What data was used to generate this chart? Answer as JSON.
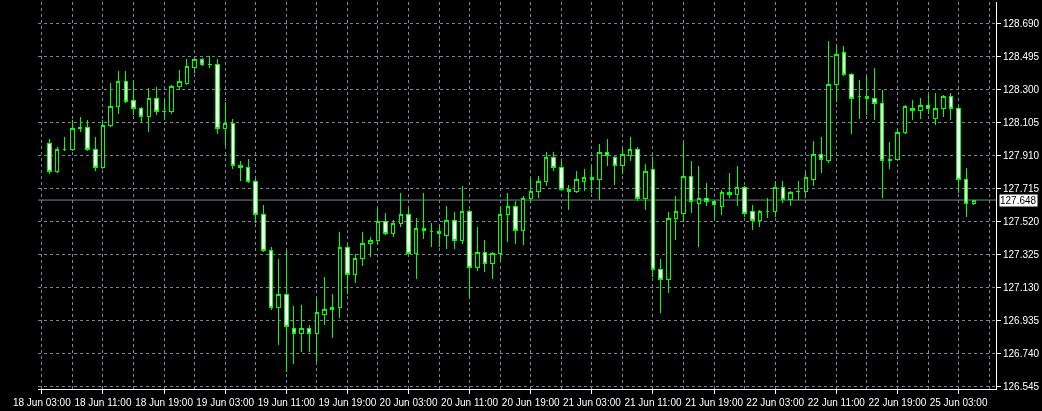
{
  "chart_data": {
    "type": "candlestick",
    "categories": [
      "18 Jun 03:00",
      null,
      null,
      null,
      null,
      null,
      null,
      null,
      "18 Jun 11:00",
      null,
      null,
      null,
      null,
      null,
      null,
      null,
      "18 Jun 19:00",
      null,
      null,
      null,
      null,
      null,
      null,
      null,
      "19 Jun 03:00",
      null,
      null,
      null,
      null,
      null,
      null,
      null,
      "19 Jun 11:00",
      null,
      null,
      null,
      null,
      null,
      null,
      null,
      "19 Jun 19:00",
      null,
      null,
      null,
      null,
      null,
      null,
      null,
      "20 Jun 03:00",
      null,
      null,
      null,
      null,
      null,
      null,
      null,
      "20 Jun 11:00",
      null,
      null,
      null,
      null,
      null,
      null,
      null,
      "20 Jun 19:00",
      null,
      null,
      null,
      null,
      null,
      null,
      null,
      "21 Jun 03:00",
      null,
      null,
      null,
      null,
      null,
      null,
      null,
      "21 Jun 11:00",
      null,
      null,
      null,
      null,
      null,
      null,
      null,
      "21 Jun 19:00",
      null,
      null,
      null,
      null,
      null,
      null,
      null,
      "22 Jun 03:00",
      null,
      null,
      null,
      null,
      null,
      null,
      null,
      "22 Jun 11:00",
      null,
      null,
      null,
      null,
      null,
      null,
      null,
      "22 Jun 19:00",
      null,
      null,
      null,
      null,
      null,
      null,
      null,
      "25 Jun 03:00",
      null,
      null
    ],
    "ohlc": [
      null,
      [
        127.98,
        128.01,
        127.8,
        127.82
      ],
      [
        127.82,
        127.96,
        127.81,
        127.95
      ],
      [
        127.95,
        128.02,
        127.94,
        127.95
      ],
      [
        127.95,
        128.12,
        127.94,
        128.07
      ],
      [
        128.07,
        128.14,
        128.05,
        128.08
      ],
      [
        128.08,
        128.12,
        127.94,
        127.95
      ],
      [
        127.95,
        128.02,
        127.82,
        127.84
      ],
      [
        127.84,
        128.12,
        127.83,
        128.09
      ],
      [
        128.09,
        128.34,
        128.08,
        128.2
      ],
      [
        128.2,
        128.41,
        128.16,
        128.35
      ],
      [
        128.35,
        128.41,
        128.22,
        128.23
      ],
      [
        128.24,
        128.35,
        128.15,
        128.19
      ],
      [
        128.19,
        128.2,
        128.11,
        128.14
      ],
      [
        128.14,
        128.31,
        128.05,
        128.25
      ],
      [
        128.25,
        128.32,
        128.15,
        128.17
      ],
      [
        128.17,
        128.24,
        128.12,
        128.17
      ],
      [
        128.17,
        128.33,
        128.16,
        128.32
      ],
      [
        128.32,
        128.42,
        128.3,
        128.35
      ],
      [
        128.34,
        128.48,
        128.33,
        128.44
      ],
      [
        128.43,
        128.49,
        128.4,
        128.48
      ],
      [
        128.48,
        128.49,
        128.44,
        128.45
      ],
      [
        128.45,
        128.5,
        128.43,
        128.45
      ],
      [
        128.45,
        128.48,
        128.04,
        128.07
      ],
      [
        128.07,
        128.23,
        127.97,
        128.1
      ],
      [
        128.1,
        128.13,
        127.83,
        127.85
      ],
      [
        127.85,
        127.88,
        127.76,
        127.84
      ],
      [
        127.84,
        127.89,
        127.75,
        127.76
      ],
      [
        127.76,
        127.77,
        127.51,
        127.56
      ],
      [
        127.56,
        127.62,
        127.34,
        127.35
      ],
      [
        127.35,
        127.37,
        127.0,
        127.01
      ],
      [
        127.01,
        127.3,
        126.79,
        127.09
      ],
      [
        127.09,
        127.35,
        126.63,
        126.9
      ],
      [
        126.89,
        127.02,
        126.68,
        126.86
      ],
      [
        126.86,
        127.03,
        126.75,
        126.89
      ],
      [
        126.89,
        126.91,
        126.75,
        126.86
      ],
      [
        126.86,
        127.07,
        126.69,
        126.98
      ],
      [
        126.97,
        127.19,
        126.91,
        127.0
      ],
      [
        127.0,
        127.09,
        126.83,
        127.01
      ],
      [
        127.01,
        127.46,
        126.95,
        127.37
      ],
      [
        127.37,
        127.38,
        127.09,
        127.21
      ],
      [
        127.21,
        127.33,
        127.16,
        127.3
      ],
      [
        127.3,
        127.46,
        127.26,
        127.39
      ],
      [
        127.39,
        127.43,
        127.31,
        127.41
      ],
      [
        127.41,
        127.6,
        127.38,
        127.52
      ],
      [
        127.52,
        127.57,
        127.44,
        127.45
      ],
      [
        127.45,
        127.53,
        127.43,
        127.51
      ],
      [
        127.51,
        127.69,
        127.49,
        127.56
      ],
      [
        127.56,
        127.6,
        127.32,
        127.33
      ],
      [
        127.33,
        127.54,
        127.18,
        127.48
      ],
      [
        127.48,
        127.69,
        127.42,
        127.47
      ],
      [
        127.46,
        127.51,
        127.37,
        127.46
      ],
      [
        127.46,
        127.5,
        127.37,
        127.45
      ],
      [
        127.44,
        127.61,
        127.36,
        127.53
      ],
      [
        127.53,
        127.58,
        127.36,
        127.41
      ],
      [
        127.41,
        127.73,
        127.39,
        127.58
      ],
      [
        127.58,
        127.59,
        127.07,
        127.25
      ],
      [
        127.25,
        127.49,
        127.23,
        127.34
      ],
      [
        127.34,
        127.41,
        127.22,
        127.27
      ],
      [
        127.27,
        127.34,
        127.18,
        127.33
      ],
      [
        127.33,
        127.61,
        127.29,
        127.56
      ],
      [
        127.56,
        127.69,
        127.4,
        127.61
      ],
      [
        127.61,
        127.64,
        127.39,
        127.47
      ],
      [
        127.47,
        127.67,
        127.38,
        127.66
      ],
      [
        127.66,
        127.78,
        127.63,
        127.7
      ],
      [
        127.7,
        127.79,
        127.66,
        127.76
      ],
      [
        127.76,
        127.93,
        127.73,
        127.9
      ],
      [
        127.9,
        127.93,
        127.82,
        127.84
      ],
      [
        127.84,
        127.88,
        127.7,
        127.71
      ],
      [
        127.71,
        127.74,
        127.59,
        127.7
      ],
      [
        127.7,
        127.82,
        127.69,
        127.77
      ],
      [
        127.76,
        127.83,
        127.7,
        127.78
      ],
      [
        127.78,
        127.85,
        127.69,
        127.77
      ],
      [
        127.77,
        127.98,
        127.65,
        127.93
      ],
      [
        127.93,
        128.01,
        127.85,
        127.91
      ],
      [
        127.9,
        127.91,
        127.74,
        127.85
      ],
      [
        127.85,
        127.95,
        127.8,
        127.92
      ],
      [
        127.91,
        128.02,
        127.88,
        127.95
      ],
      [
        127.95,
        127.96,
        127.64,
        127.66
      ],
      [
        127.66,
        127.86,
        127.59,
        127.82
      ],
      [
        127.83,
        127.9,
        127.19,
        127.24
      ],
      [
        127.24,
        127.3,
        126.98,
        127.18
      ],
      [
        127.18,
        127.58,
        127.1,
        127.54
      ],
      [
        127.54,
        127.67,
        127.41,
        127.58
      ],
      [
        127.57,
        127.99,
        127.52,
        127.79
      ],
      [
        127.79,
        127.88,
        127.57,
        127.64
      ],
      [
        127.63,
        127.85,
        127.37,
        127.66
      ],
      [
        127.66,
        127.75,
        127.61,
        127.64
      ],
      [
        127.64,
        127.65,
        127.53,
        127.62
      ],
      [
        127.61,
        127.71,
        127.56,
        127.69
      ],
      [
        127.68,
        127.81,
        127.66,
        127.69
      ],
      [
        127.68,
        127.85,
        127.61,
        127.72
      ],
      [
        127.72,
        127.73,
        127.55,
        127.57
      ],
      [
        127.58,
        127.62,
        127.47,
        127.53
      ],
      [
        127.53,
        127.59,
        127.49,
        127.58
      ],
      [
        127.58,
        127.66,
        127.54,
        127.58
      ],
      [
        127.58,
        127.76,
        127.55,
        127.72
      ],
      [
        127.72,
        127.76,
        127.63,
        127.65
      ],
      [
        127.65,
        127.7,
        127.61,
        127.69
      ],
      [
        127.7,
        127.76,
        127.65,
        127.7
      ],
      [
        127.7,
        127.81,
        127.66,
        127.78
      ],
      [
        127.77,
        128.0,
        127.73,
        127.92
      ],
      [
        127.92,
        128.02,
        127.81,
        127.89
      ],
      [
        127.88,
        128.59,
        127.87,
        128.33
      ],
      [
        128.33,
        128.56,
        128.23,
        128.51
      ],
      [
        128.52,
        128.56,
        128.38,
        128.39
      ],
      [
        128.39,
        128.4,
        128.04,
        128.25
      ],
      [
        128.26,
        128.36,
        128.13,
        128.26
      ],
      [
        128.26,
        128.38,
        128.15,
        128.25
      ],
      [
        128.25,
        128.43,
        128.12,
        128.22
      ],
      [
        128.22,
        128.3,
        127.66,
        127.88
      ],
      [
        127.89,
        127.99,
        127.83,
        127.88
      ],
      [
        127.89,
        128.07,
        127.88,
        128.05
      ],
      [
        128.05,
        128.21,
        128.04,
        128.2
      ],
      [
        128.19,
        128.24,
        128.12,
        128.18
      ],
      [
        128.18,
        128.25,
        128.13,
        128.21
      ],
      [
        128.21,
        128.27,
        128.16,
        128.19
      ],
      [
        128.13,
        128.28,
        128.09,
        128.19
      ],
      [
        128.19,
        128.27,
        128.14,
        128.26
      ],
      [
        128.26,
        128.28,
        128.12,
        128.19
      ],
      [
        128.19,
        128.2,
        127.69,
        127.77
      ],
      [
        127.77,
        127.84,
        127.55,
        127.63
      ],
      [
        127.63,
        127.65,
        127.62,
        127.648
      ]
    ],
    "color": "#00ff00",
    "ylim": [
      126.53,
      128.82
    ],
    "yticks": [
      126.545,
      {
        "value": 126.74,
        "label": "126.740"
      },
      126.935,
      {
        "value": 127.13,
        "label": "127.130"
      },
      127.325,
      {
        "value": 127.52,
        "label": "127.520"
      },
      127.715,
      {
        "value": 127.91,
        "label": "127.910"
      },
      128.105,
      {
        "value": 128.3,
        "label": "128.300"
      },
      128.495,
      {
        "value": 128.69,
        "label": "128.690"
      }
    ],
    "grid": true,
    "ref_lines": [
      {
        "axis": "y",
        "value": 127.648,
        "label": "127.648",
        "color": "#778899"
      }
    ]
  }
}
